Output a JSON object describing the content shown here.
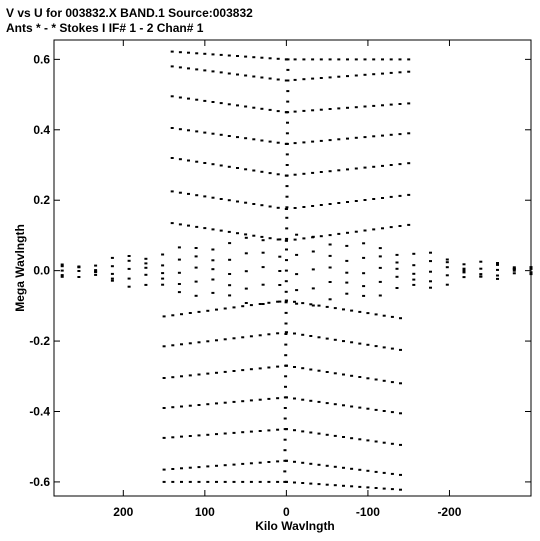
{
  "chart_data": {
    "type": "scatter",
    "title_line1": "V vs U for 003832.X BAND.1   Source:003832",
    "title_line2": "Ants * - *     Stokes I  IF# 1 - 2  Chan# 1",
    "xlabel": "Kilo Wavlngth",
    "ylabel": "Mega Wavlngth",
    "xlim": [
      285,
      -300
    ],
    "ylim": [
      -0.64,
      0.655
    ],
    "x_ticks": [
      200,
      100,
      0,
      -100,
      -200
    ],
    "x_tick_labels": [
      "200",
      "100",
      "0",
      "-100",
      "-200"
    ],
    "y_ticks": [
      0.6,
      0.4,
      0.2,
      0.0,
      -0.2,
      -0.4,
      -0.6
    ],
    "y_tick_labels": [
      "0.6",
      "0.4",
      "0.2",
      "0.0",
      "-0.2",
      "-0.4",
      "-0.6"
    ],
    "grid": false,
    "point_color": "#000000",
    "chevrons": {
      "tips": [
        0.6,
        0.54,
        0.45,
        0.36,
        0.27,
        0.175,
        0.085
      ],
      "left_shift": [
        0.022,
        0.04,
        0.045,
        0.045,
        0.05,
        0.05,
        0.05
      ],
      "right_shift": [
        0.0,
        0.025,
        0.025,
        0.03,
        0.035,
        0.04,
        0.045
      ],
      "left_extent": 140,
      "right_extent": -150
    },
    "horizontal_band": {
      "u_max": 275,
      "u_min": -300,
      "v_spread": 0.05
    }
  }
}
